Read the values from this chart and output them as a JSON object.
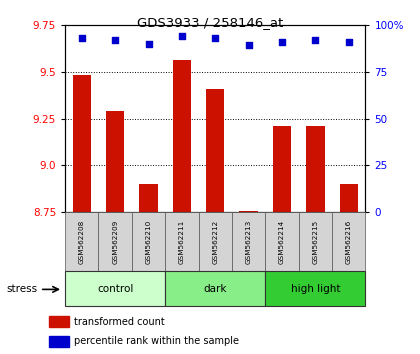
{
  "title": "GDS3933 / 258146_at",
  "samples": [
    "GSM562208",
    "GSM562209",
    "GSM562210",
    "GSM562211",
    "GSM562212",
    "GSM562213",
    "GSM562214",
    "GSM562215",
    "GSM562216"
  ],
  "transformed_counts": [
    9.48,
    9.29,
    8.9,
    9.56,
    9.41,
    8.76,
    9.21,
    9.21,
    8.9
  ],
  "percentile_ranks": [
    93,
    92,
    90,
    94,
    93,
    89,
    91,
    92,
    91
  ],
  "groups": [
    {
      "label": "control",
      "indices": [
        0,
        1,
        2
      ],
      "color": "#ccffcc"
    },
    {
      "label": "dark",
      "indices": [
        3,
        4,
        5
      ],
      "color": "#88ee88"
    },
    {
      "label": "high light",
      "indices": [
        6,
        7,
        8
      ],
      "color": "#33cc33"
    }
  ],
  "ylim": [
    8.75,
    9.75
  ],
  "yticks": [
    8.75,
    9.0,
    9.25,
    9.5,
    9.75
  ],
  "y2lim": [
    0,
    100
  ],
  "y2ticks": [
    0,
    25,
    50,
    75,
    100
  ],
  "bar_color": "#cc1100",
  "dot_color": "#0000cc",
  "bar_width": 0.55,
  "stress_label": "stress",
  "legend_items": [
    "transformed count",
    "percentile rank within the sample"
  ]
}
